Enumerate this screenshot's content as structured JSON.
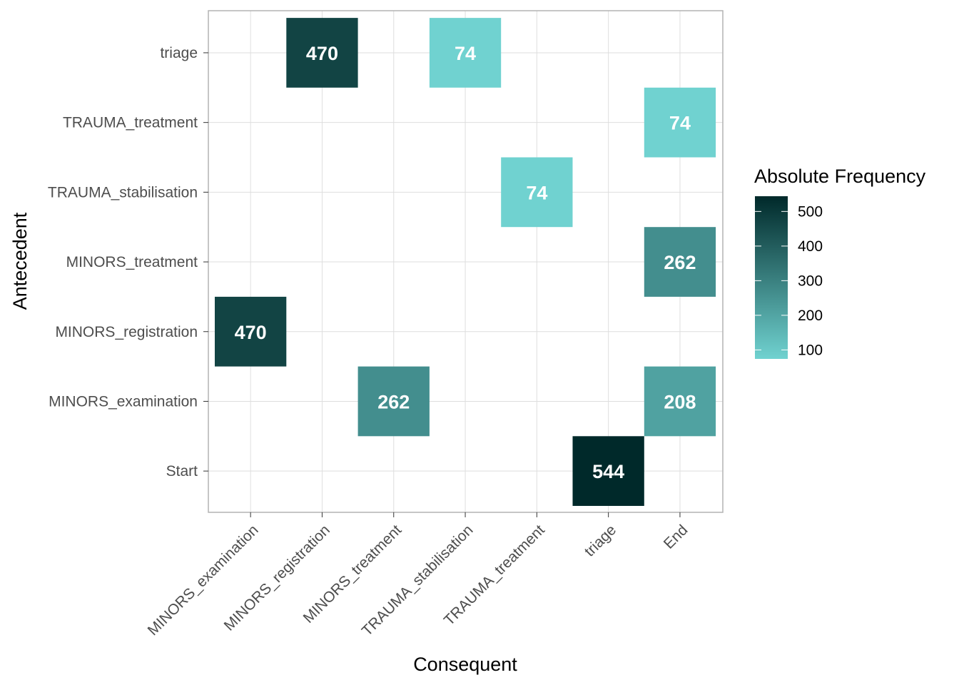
{
  "chart_data": {
    "type": "heatmap",
    "xlabel": "Consequent",
    "ylabel": "Antecedent",
    "x_categories": [
      "MINORS_examination",
      "MINORS_registration",
      "MINORS_treatment",
      "TRAUMA_stabilisation",
      "TRAUMA_treatment",
      "triage",
      "End"
    ],
    "y_categories": [
      "Start",
      "MINORS_examination",
      "MINORS_registration",
      "MINORS_treatment",
      "TRAUMA_stabilisation",
      "TRAUMA_treatment",
      "triage"
    ],
    "cells": [
      {
        "antecedent": "triage",
        "consequent": "MINORS_registration",
        "value": 470
      },
      {
        "antecedent": "triage",
        "consequent": "TRAUMA_stabilisation",
        "value": 74
      },
      {
        "antecedent": "TRAUMA_treatment",
        "consequent": "End",
        "value": 74
      },
      {
        "antecedent": "TRAUMA_stabilisation",
        "consequent": "TRAUMA_treatment",
        "value": 74
      },
      {
        "antecedent": "MINORS_treatment",
        "consequent": "End",
        "value": 262
      },
      {
        "antecedent": "MINORS_registration",
        "consequent": "MINORS_examination",
        "value": 470
      },
      {
        "antecedent": "MINORS_examination",
        "consequent": "MINORS_treatment",
        "value": 262
      },
      {
        "antecedent": "MINORS_examination",
        "consequent": "End",
        "value": 208
      },
      {
        "antecedent": "Start",
        "consequent": "triage",
        "value": 544
      }
    ],
    "legend": {
      "title": "Absolute Frequency",
      "ticks": [
        100,
        200,
        300,
        400,
        500
      ],
      "range": [
        74,
        544
      ],
      "low_color": "#70d2d0",
      "high_color": "#00292a"
    },
    "grid": true,
    "legend_position": "right"
  }
}
